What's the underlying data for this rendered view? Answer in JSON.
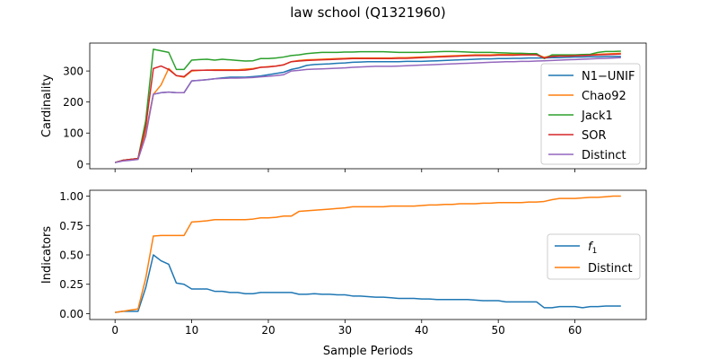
{
  "chart_data": [
    {
      "type": "line",
      "title": "law school (Q1321960)",
      "xlabel": "",
      "ylabel": "Cardinality",
      "xlim": [
        -3.3,
        69.3
      ],
      "ylim": [
        -15,
        390
      ],
      "x_ticks": [
        0,
        10,
        20,
        30,
        40,
        50,
        60
      ],
      "x_ticks_labeled": false,
      "y_ticks": [
        0,
        100,
        200,
        300
      ],
      "legend_position": "center-right",
      "series": [
        {
          "name": "N1−UNIF",
          "color": "#1f77b4",
          "values": [
            5,
            12,
            15,
            18,
            100,
            225,
            230,
            232,
            230,
            230,
            268,
            270,
            272,
            275,
            278,
            280,
            280,
            280,
            282,
            284,
            288,
            292,
            296,
            305,
            310,
            318,
            321,
            322,
            323,
            325,
            326,
            328,
            329,
            330,
            330,
            330,
            330,
            330,
            331,
            331,
            331,
            332,
            333,
            334,
            335,
            336,
            337,
            338,
            339,
            339,
            340,
            340,
            341,
            341,
            342,
            342,
            342,
            343,
            343,
            344,
            345,
            345,
            346,
            346,
            347,
            347,
            347
          ]
        },
        {
          "name": "Chao92",
          "color": "#ff7f0e",
          "values": [
            5,
            12,
            15,
            18,
            100,
            225,
            255,
            308,
            285,
            280,
            300,
            302,
            303,
            304,
            304,
            304,
            304,
            306,
            308,
            312,
            314,
            316,
            320,
            330,
            334,
            336,
            337,
            338,
            339,
            340,
            341,
            342,
            342,
            342,
            342,
            342,
            342,
            343,
            343,
            344,
            345,
            346,
            347,
            348,
            349,
            350,
            351,
            352,
            352,
            352,
            353,
            353,
            353,
            354,
            354,
            354,
            344,
            349,
            350,
            350,
            351,
            352,
            353,
            354,
            355,
            356,
            357
          ]
        },
        {
          "name": "Jack1",
          "color": "#2ca02c",
          "values": [
            5,
            12,
            15,
            18,
            140,
            370,
            365,
            360,
            305,
            305,
            335,
            337,
            338,
            335,
            338,
            336,
            334,
            332,
            333,
            340,
            340,
            342,
            345,
            350,
            352,
            356,
            358,
            360,
            360,
            360,
            361,
            361,
            362,
            362,
            362,
            362,
            361,
            360,
            360,
            360,
            360,
            361,
            362,
            363,
            363,
            362,
            361,
            360,
            360,
            360,
            359,
            358,
            357,
            357,
            356,
            356,
            340,
            352,
            352,
            352,
            352,
            353,
            354,
            360,
            363,
            363,
            364
          ]
        },
        {
          "name": "SOR",
          "color": "#d62728",
          "values": [
            5,
            12,
            15,
            18,
            120,
            308,
            316,
            305,
            285,
            282,
            302,
            302,
            303,
            302,
            302,
            302,
            302,
            303,
            306,
            312,
            313,
            316,
            320,
            330,
            332,
            334,
            335,
            336,
            337,
            338,
            339,
            340,
            340,
            340,
            340,
            340,
            340,
            341,
            341,
            342,
            343,
            344,
            345,
            346,
            347,
            348,
            349,
            350,
            350,
            350,
            351,
            351,
            351,
            352,
            352,
            352,
            342,
            347,
            348,
            348,
            349,
            350,
            351,
            352,
            353,
            354,
            355
          ]
        },
        {
          "name": "Distinct",
          "color": "#9467bd",
          "values": [
            5,
            10,
            12,
            15,
            90,
            225,
            230,
            232,
            230,
            230,
            268,
            270,
            272,
            275,
            276,
            277,
            277,
            278,
            279,
            281,
            283,
            285,
            288,
            300,
            302,
            305,
            306,
            307,
            308,
            309,
            310,
            312,
            313,
            314,
            315,
            315,
            315,
            316,
            317,
            318,
            319,
            320,
            321,
            322,
            323,
            324,
            325,
            326,
            327,
            328,
            329,
            330,
            330,
            331,
            331,
            332,
            333,
            334,
            335,
            336,
            337,
            338,
            339,
            340,
            341,
            342,
            343
          ]
        }
      ]
    },
    {
      "type": "line",
      "title": "",
      "xlabel": "Sample Periods",
      "ylabel": "Indicators",
      "xlim": [
        -3.3,
        69.3
      ],
      "ylim": [
        -0.05,
        1.05
      ],
      "x_ticks": [
        0,
        10,
        20,
        30,
        40,
        50,
        60
      ],
      "x_ticks_labeled": true,
      "y_ticks": [
        0.0,
        0.25,
        0.5,
        0.75,
        1.0
      ],
      "y_tick_labels": [
        "0.00",
        "0.25",
        "0.50",
        "0.75",
        "1.00"
      ],
      "legend_position": "center-right",
      "series": [
        {
          "name": "f1",
          "display_base": "f",
          "display_sub": "1",
          "color": "#1f77b4",
          "values": [
            0.01,
            0.02,
            0.02,
            0.02,
            0.22,
            0.5,
            0.45,
            0.42,
            0.26,
            0.25,
            0.21,
            0.21,
            0.21,
            0.19,
            0.19,
            0.18,
            0.18,
            0.17,
            0.17,
            0.18,
            0.18,
            0.18,
            0.18,
            0.18,
            0.165,
            0.165,
            0.17,
            0.165,
            0.165,
            0.16,
            0.16,
            0.15,
            0.15,
            0.145,
            0.14,
            0.14,
            0.135,
            0.13,
            0.13,
            0.13,
            0.125,
            0.125,
            0.12,
            0.12,
            0.12,
            0.12,
            0.12,
            0.115,
            0.11,
            0.11,
            0.11,
            0.1,
            0.1,
            0.1,
            0.1,
            0.1,
            0.05,
            0.05,
            0.06,
            0.06,
            0.06,
            0.05,
            0.06,
            0.06,
            0.065,
            0.065,
            0.065
          ]
        },
        {
          "name": "Distinct",
          "color": "#ff7f0e",
          "values": [
            0.01,
            0.02,
            0.03,
            0.04,
            0.3,
            0.66,
            0.665,
            0.665,
            0.665,
            0.665,
            0.78,
            0.785,
            0.79,
            0.8,
            0.8,
            0.8,
            0.8,
            0.8,
            0.805,
            0.815,
            0.815,
            0.82,
            0.83,
            0.83,
            0.87,
            0.875,
            0.88,
            0.885,
            0.89,
            0.895,
            0.9,
            0.91,
            0.91,
            0.91,
            0.91,
            0.91,
            0.915,
            0.915,
            0.915,
            0.915,
            0.92,
            0.925,
            0.925,
            0.93,
            0.93,
            0.935,
            0.935,
            0.935,
            0.94,
            0.94,
            0.945,
            0.945,
            0.945,
            0.945,
            0.95,
            0.95,
            0.955,
            0.97,
            0.98,
            0.98,
            0.98,
            0.985,
            0.99,
            0.99,
            0.995,
            1.0,
            1.0
          ]
        }
      ]
    }
  ]
}
